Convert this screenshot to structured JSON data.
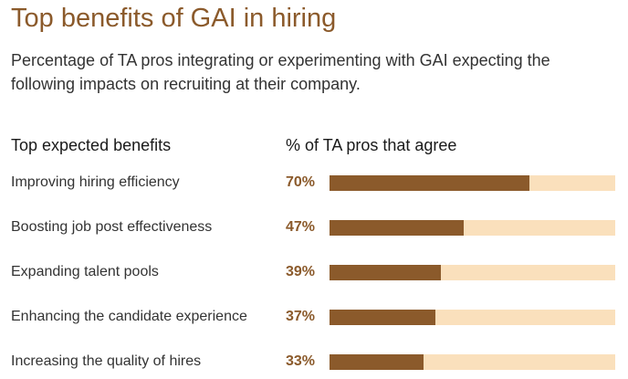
{
  "title": "Top benefits of GAI in hiring",
  "subtitle": "Percentage of TA pros integrating or experimenting with GAI expecting the following impacts on recruiting at their company.",
  "colors": {
    "title": "#8B5A2B",
    "bar_fill": "#8B5A2B",
    "bar_track": "#FAE0BC",
    "value_text": "#8B5A2B"
  },
  "chart_data": {
    "type": "bar",
    "orientation": "horizontal",
    "title": "Top benefits of GAI in hiring",
    "subtitle": "Percentage of TA pros integrating or experimenting with GAI expecting the following impacts on recruiting at their company.",
    "category_header": "Top expected benefits",
    "value_header": "% of TA pros that agree",
    "categories": [
      "Improving hiring efficiency",
      "Boosting job post effectiveness",
      "Expanding talent pools",
      "Enhancing the candidate experience",
      "Increasing the quality of hires"
    ],
    "values": [
      70,
      47,
      39,
      37,
      33
    ],
    "value_labels": [
      "70%",
      "47%",
      "39%",
      "37%",
      "33%"
    ],
    "xlim": [
      0,
      100
    ],
    "grid": false,
    "legend": "none"
  }
}
